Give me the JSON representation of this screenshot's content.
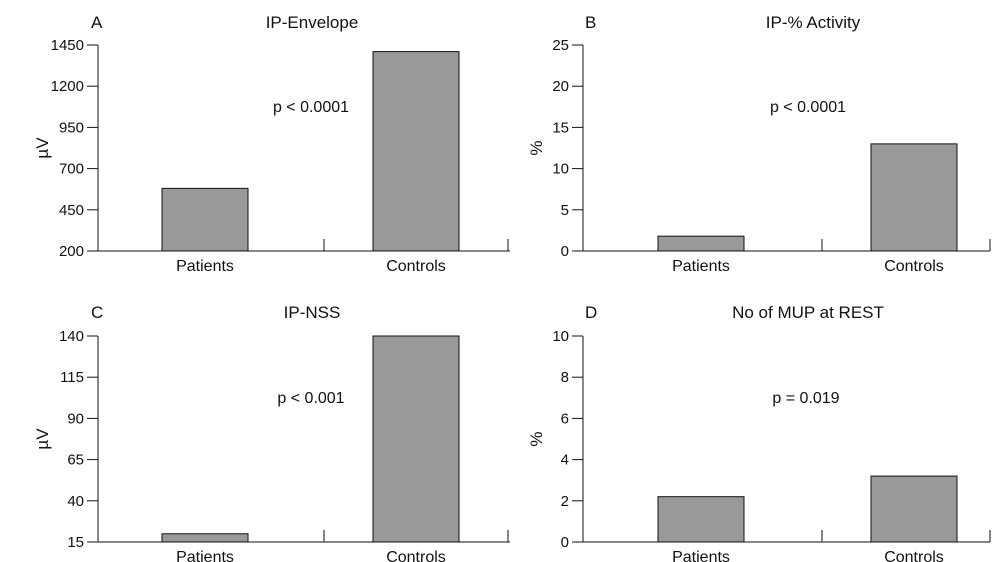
{
  "chart_data": [
    {
      "type": "bar",
      "panel": "A",
      "title": "IP-Envelope",
      "ylabel": "µV",
      "xlabel": "",
      "categories": [
        "Patients",
        "Controls"
      ],
      "values": [
        580,
        1410
      ],
      "ylim": [
        200,
        1450
      ],
      "yticks": [
        200,
        450,
        700,
        950,
        1200,
        1450
      ],
      "annotation": "p < 0.0001",
      "grid": false,
      "bar_color": "#999999"
    },
    {
      "type": "bar",
      "panel": "B",
      "title": "IP-% Activity",
      "ylabel": "%",
      "xlabel": "",
      "categories": [
        "Patients",
        "Controls"
      ],
      "values": [
        1.8,
        13
      ],
      "ylim": [
        0,
        25
      ],
      "yticks": [
        0,
        5,
        10,
        15,
        20,
        25
      ],
      "annotation": "p < 0.0001",
      "grid": false,
      "bar_color": "#999999"
    },
    {
      "type": "bar",
      "panel": "C",
      "title": "IP-NSS",
      "ylabel": "µV",
      "xlabel": "",
      "categories": [
        "Patients",
        "Controls"
      ],
      "values": [
        20,
        143
      ],
      "ylim": [
        15,
        140
      ],
      "yticks": [
        15,
        40,
        65,
        90,
        115,
        140
      ],
      "annotation": "p < 0.001",
      "grid": false,
      "bar_color": "#999999"
    },
    {
      "type": "bar",
      "panel": "D",
      "title": "No of MUP at REST",
      "ylabel": "%",
      "xlabel": "",
      "categories": [
        "Patients",
        "Controls"
      ],
      "values": [
        2.2,
        3.2
      ],
      "ylim": [
        0,
        10
      ],
      "yticks": [
        0,
        2,
        4,
        6,
        8,
        10
      ],
      "annotation": "p = 0.019",
      "grid": false,
      "bar_color": "#999999"
    }
  ]
}
